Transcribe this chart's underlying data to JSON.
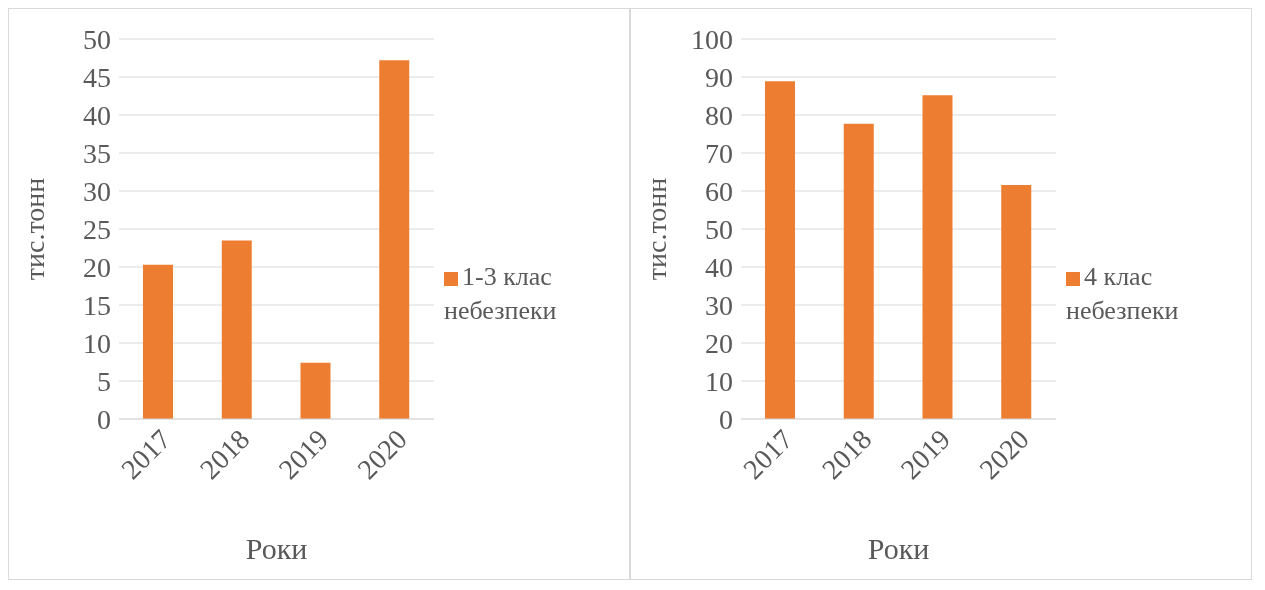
{
  "chart_data": [
    {
      "type": "bar",
      "categories": [
        "2017",
        "2018",
        "2019",
        "2020"
      ],
      "xlabel": "Роки",
      "ylabel": "тис.тонн",
      "ylim": [
        0,
        50
      ],
      "yticks": [
        0,
        5,
        10,
        15,
        20,
        25,
        30,
        35,
        40,
        45,
        50
      ],
      "grid": "y",
      "legend": "right",
      "series": [
        {
          "name": "1-3 клас небезпеки",
          "color": "#ed7d31",
          "values": [
            20.3,
            23.5,
            7.4,
            47.2
          ]
        }
      ]
    },
    {
      "type": "bar",
      "categories": [
        "2017",
        "2018",
        "2019",
        "2020"
      ],
      "xlabel": "Роки",
      "ylabel": "тис.тонн",
      "ylim": [
        0,
        100
      ],
      "yticks": [
        0,
        10,
        20,
        30,
        40,
        50,
        60,
        70,
        80,
        90,
        100
      ],
      "grid": "y",
      "legend": "right",
      "series": [
        {
          "name": "4 клас небезпеки",
          "color": "#ed7d31",
          "values": [
            88.9,
            77.7,
            85.2,
            61.6
          ]
        }
      ]
    }
  ]
}
